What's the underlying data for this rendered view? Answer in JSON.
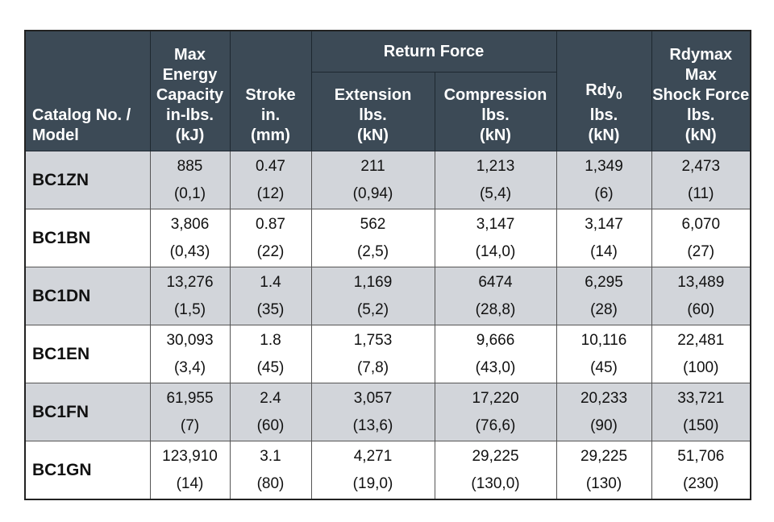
{
  "table": {
    "headers": {
      "model": [
        "Catalog No. /",
        "Model"
      ],
      "energy": [
        "Max",
        "Energy",
        "Capacity",
        "in-lbs.",
        "(kJ)"
      ],
      "stroke": [
        "Stroke",
        "in.",
        "(mm)"
      ],
      "return_force": "Return Force",
      "extension": [
        "Extension",
        "lbs.",
        "(kN)"
      ],
      "compression": [
        "Compression",
        "lbs.",
        "(kN)"
      ],
      "rdy0": {
        "main": "Rdy",
        "sub": "0",
        "lines": [
          "lbs.",
          "(kN)"
        ]
      },
      "rdymax": [
        "Rdymax",
        "Max",
        "Shock Force",
        "lbs.",
        "(kN)"
      ]
    },
    "rows": [
      {
        "model": "BC1ZN",
        "cells": [
          [
            "885",
            "(0,1)"
          ],
          [
            "0.47",
            "(12)"
          ],
          [
            "211",
            "(0,94)"
          ],
          [
            "1,213",
            "(5,4)"
          ],
          [
            "1,349",
            "(6)"
          ],
          [
            "2,473",
            "(11)"
          ]
        ]
      },
      {
        "model": "BC1BN",
        "cells": [
          [
            "3,806",
            "(0,43)"
          ],
          [
            "0.87",
            "(22)"
          ],
          [
            "562",
            "(2,5)"
          ],
          [
            "3,147",
            "(14,0)"
          ],
          [
            "3,147",
            "(14)"
          ],
          [
            "6,070",
            "(27)"
          ]
        ]
      },
      {
        "model": "BC1DN",
        "cells": [
          [
            "13,276",
            "(1,5)"
          ],
          [
            "1.4",
            "(35)"
          ],
          [
            "1,169",
            "(5,2)"
          ],
          [
            "6474",
            "(28,8)"
          ],
          [
            "6,295",
            "(28)"
          ],
          [
            "13,489",
            "(60)"
          ]
        ]
      },
      {
        "model": "BC1EN",
        "cells": [
          [
            "30,093",
            "(3,4)"
          ],
          [
            "1.8",
            "(45)"
          ],
          [
            "1,753",
            "(7,8)"
          ],
          [
            "9,666",
            "(43,0)"
          ],
          [
            "10,116",
            "(45)"
          ],
          [
            "22,481",
            "(100)"
          ]
        ]
      },
      {
        "model": "BC1FN",
        "cells": [
          [
            "61,955",
            "(7)"
          ],
          [
            "2.4",
            "(60)"
          ],
          [
            "3,057",
            "(13,6)"
          ],
          [
            "17,220",
            "(76,6)"
          ],
          [
            "20,233",
            "(90)"
          ],
          [
            "33,721",
            "(150)"
          ]
        ]
      },
      {
        "model": "BC1GN",
        "cells": [
          [
            "123,910",
            "(14)"
          ],
          [
            "3.1",
            "(80)"
          ],
          [
            "4,271",
            "(19,0)"
          ],
          [
            "29,225",
            "(130,0)"
          ],
          [
            "29,225",
            "(130)"
          ],
          [
            "51,706",
            "(230)"
          ]
        ]
      }
    ]
  }
}
